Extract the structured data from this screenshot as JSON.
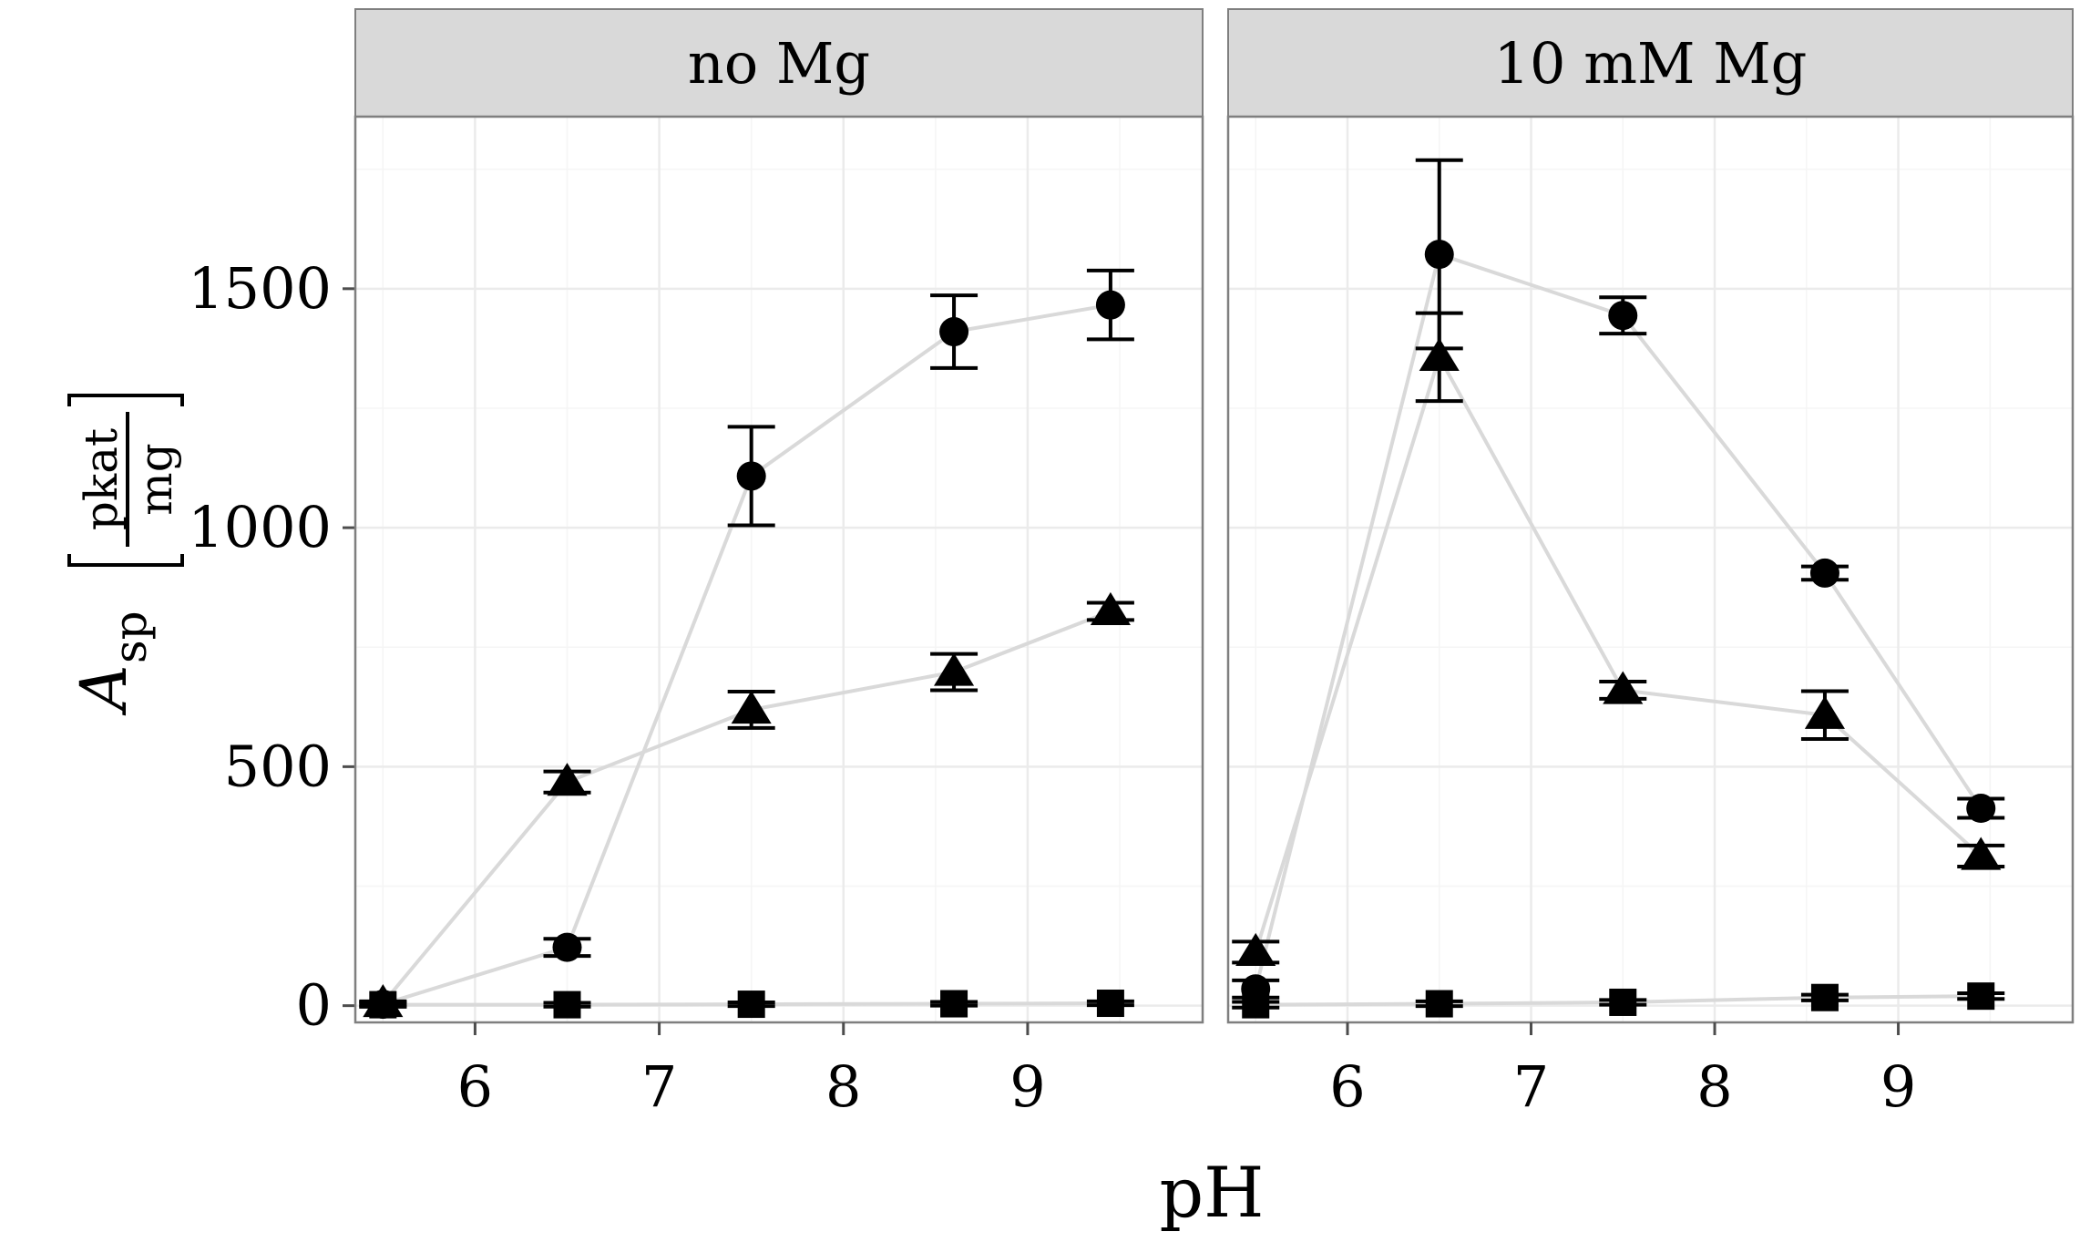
{
  "chart_data": {
    "type": "scatter",
    "xlabel": "pH",
    "ylabel": {
      "symbol": "A",
      "subscript": "sp",
      "unit_numerator": "pkat",
      "unit_denominator": "mg"
    },
    "xlim": [
      5.35,
      9.95
    ],
    "ylim": [
      -35,
      1860
    ],
    "x_ticks": [
      6,
      7,
      8,
      9
    ],
    "y_ticks": [
      0,
      500,
      1000,
      1500
    ],
    "grid": true,
    "legend": "none",
    "colors": {
      "points": "#000000",
      "lines": "#d9d9d9",
      "strip_fill": "#d9d9d9",
      "panel_border": "#7f7f7f",
      "grid_major": "#ebebeb",
      "grid_minor": "#f5f5f5"
    },
    "panels": [
      {
        "title": "no Mg",
        "series": [
          {
            "marker": "circle",
            "points": [
              {
                "x": 5.5,
                "y": 3,
                "err": 5
              },
              {
                "x": 6.5,
                "y": 122,
                "err": 18
              },
              {
                "x": 7.5,
                "y": 1108,
                "err": 103
              },
              {
                "x": 8.6,
                "y": 1410,
                "err": 76
              },
              {
                "x": 9.45,
                "y": 1466,
                "err": 72
              }
            ]
          },
          {
            "marker": "triangle",
            "points": [
              {
                "x": 5.5,
                "y": 5,
                "err": 4
              },
              {
                "x": 6.5,
                "y": 468,
                "err": 22
              },
              {
                "x": 7.5,
                "y": 619,
                "err": 38
              },
              {
                "x": 8.6,
                "y": 698,
                "err": 38
              },
              {
                "x": 9.45,
                "y": 825,
                "err": 18
              }
            ]
          },
          {
            "marker": "square",
            "points": [
              {
                "x": 5.5,
                "y": 2,
                "err": 4
              },
              {
                "x": 6.5,
                "y": 2,
                "err": 4
              },
              {
                "x": 7.5,
                "y": 3,
                "err": 4
              },
              {
                "x": 8.6,
                "y": 4,
                "err": 4
              },
              {
                "x": 9.45,
                "y": 5,
                "err": 4
              }
            ]
          }
        ]
      },
      {
        "title": "10 mM Mg",
        "series": [
          {
            "marker": "circle",
            "points": [
              {
                "x": 5.5,
                "y": 35,
                "err": 18
              },
              {
                "x": 6.5,
                "y": 1572,
                "err": 197
              },
              {
                "x": 7.5,
                "y": 1444,
                "err": 38
              },
              {
                "x": 8.6,
                "y": 905,
                "err": 14
              },
              {
                "x": 9.45,
                "y": 413,
                "err": 20
              }
            ]
          },
          {
            "marker": "triangle",
            "points": [
              {
                "x": 5.5,
                "y": 112,
                "err": 22
              },
              {
                "x": 6.5,
                "y": 1357,
                "err": 92
              },
              {
                "x": 7.5,
                "y": 660,
                "err": 18
              },
              {
                "x": 8.6,
                "y": 608,
                "err": 50
              },
              {
                "x": 9.45,
                "y": 313,
                "err": 22
              }
            ]
          },
          {
            "marker": "square",
            "points": [
              {
                "x": 5.5,
                "y": 2,
                "err": 6
              },
              {
                "x": 6.5,
                "y": 4,
                "err": 5
              },
              {
                "x": 7.5,
                "y": 7,
                "err": 5
              },
              {
                "x": 8.6,
                "y": 17,
                "err": 6
              },
              {
                "x": 9.45,
                "y": 20,
                "err": 6
              }
            ]
          }
        ]
      }
    ]
  }
}
